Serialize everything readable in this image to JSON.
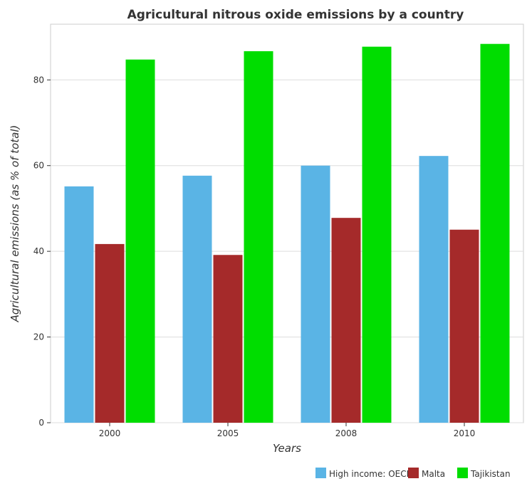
{
  "chart_data": {
    "type": "bar",
    "title": "Agricultural nitrous oxide emissions by a country",
    "xlabel": "Years",
    "ylabel": "Agricultural emissions (as % of total)",
    "categories": [
      "2000",
      "2005",
      "2008",
      "2010"
    ],
    "ylim": [
      0,
      93
    ],
    "yticks": [
      0,
      20,
      40,
      60,
      80
    ],
    "grid": true,
    "legend_position": "bottom-right",
    "series": [
      {
        "name": "High income: OECD",
        "color": "#5ab4e5",
        "values": [
          55.15,
          57.65,
          60.0,
          62.25
        ]
      },
      {
        "name": "Malta",
        "color": "#a52a2a",
        "values": [
          41.7,
          39.15,
          47.8,
          45.05
        ]
      },
      {
        "name": "Tajikistan",
        "color": "#00dd00",
        "values": [
          84.75,
          86.7,
          87.75,
          88.4
        ]
      }
    ]
  }
}
